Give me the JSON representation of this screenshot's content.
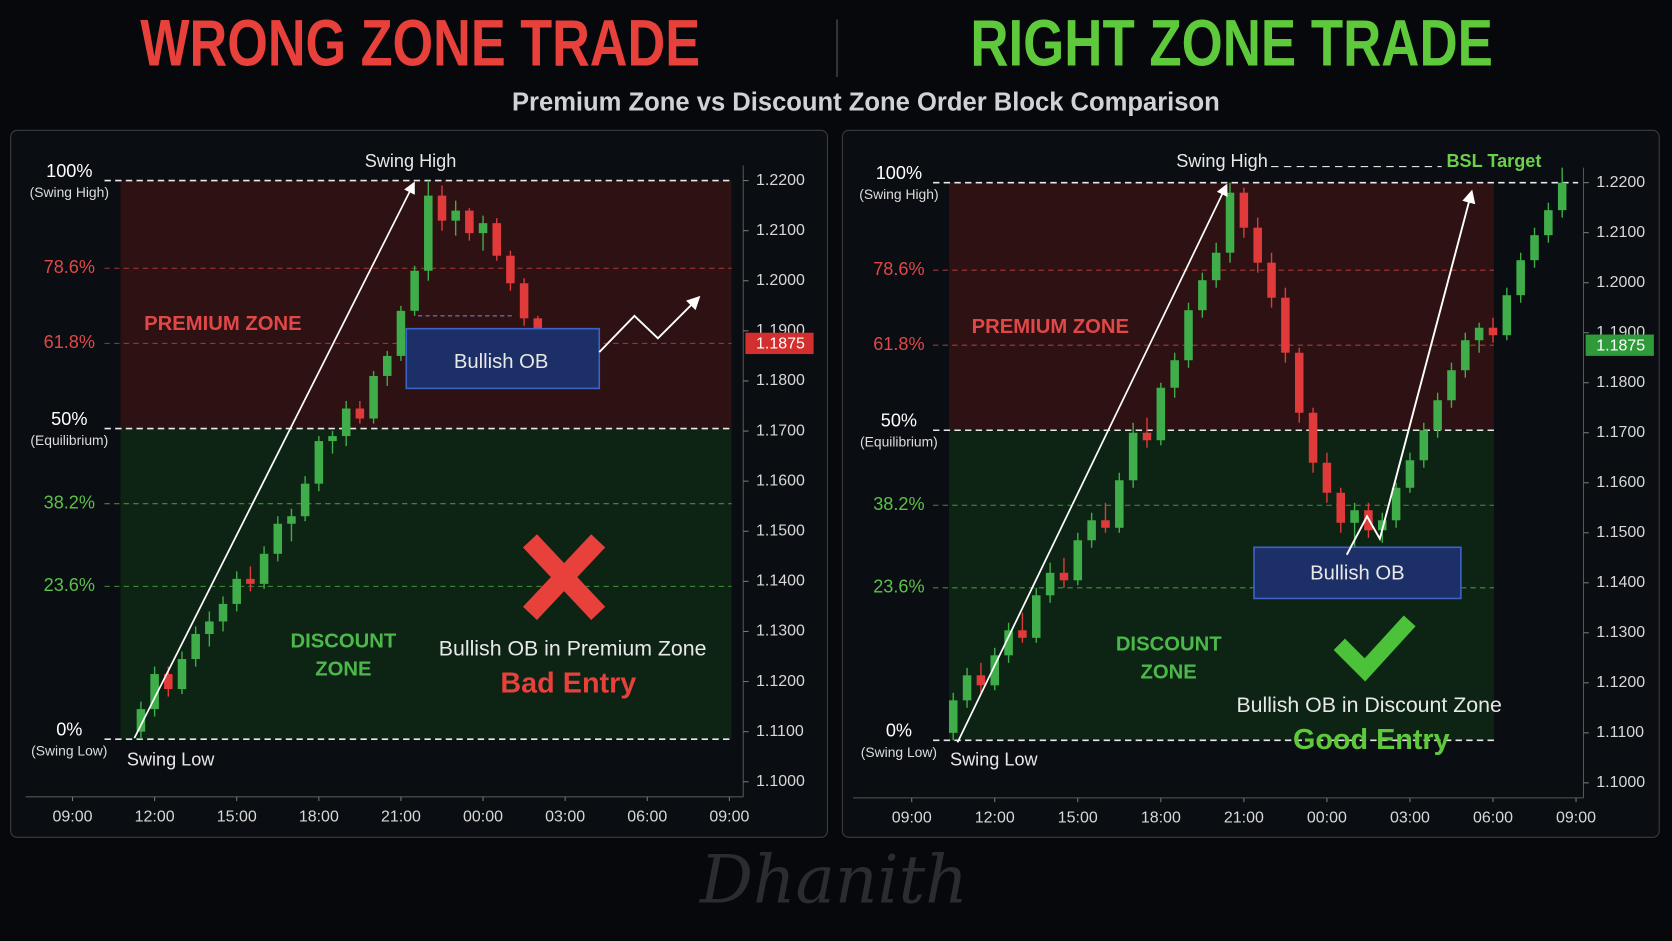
{
  "subtitle": "Premium Zone vs Discount Zone Order Block Comparison",
  "watermark": "Dhanith",
  "chart_data": [
    {
      "type": "candlestick",
      "title": "WRONG ZONE TRADE",
      "title_color": "#e8403a",
      "up_color": "#3fae4a",
      "down_color": "#e03a3a",
      "xticks": [
        "09:00",
        "12:00",
        "15:00",
        "18:00",
        "21:00",
        "00:00",
        "03:00",
        "06:00",
        "09:00"
      ],
      "ylim": [
        1.097,
        1.223
      ],
      "yticks": [
        {
          "value": 1.1,
          "label": "1.1000"
        },
        {
          "value": 1.11,
          "label": "1.1100"
        },
        {
          "value": 1.12,
          "label": "1.1200"
        },
        {
          "value": 1.13,
          "label": "1.1300"
        },
        {
          "value": 1.14,
          "label": "1.1400"
        },
        {
          "value": 1.15,
          "label": "1.1500"
        },
        {
          "value": 1.16,
          "label": "1.1600"
        },
        {
          "value": 1.17,
          "label": "1.1700"
        },
        {
          "value": 1.18,
          "label": "1.1800"
        },
        {
          "value": 1.19,
          "label": "1.1900"
        },
        {
          "value": 1.2,
          "label": "1.2000"
        },
        {
          "value": 1.21,
          "label": "1.2100"
        },
        {
          "value": 1.22,
          "label": "1.2200"
        }
      ],
      "levels": [
        {
          "label": "100%",
          "note": "(Swing High)",
          "value": 1.22,
          "color": "#ffffff"
        },
        {
          "label": "78.6%",
          "value": 1.2025,
          "color": "#e04848"
        },
        {
          "label": "61.8%",
          "value": 1.1875,
          "color": "#e04848",
          "tag": true
        },
        {
          "label": "50%",
          "note": "(Equilibrium)",
          "value": 1.1705,
          "color": "#ffffff"
        },
        {
          "label": "38.2%",
          "value": 1.1555,
          "color": "#5cc04a"
        },
        {
          "label": "23.6%",
          "value": 1.139,
          "color": "#5cc04a"
        },
        {
          "label": "0%",
          "note": "(Swing Low)",
          "value": 1.1085,
          "color": "#ffffff"
        }
      ],
      "tag_color": "#d42f2f",
      "zones": [
        {
          "label": [
            "PREMIUM ZONE"
          ],
          "color": "#2e1112"
        },
        {
          "label": [
            "DISCOUNT",
            "ZONE"
          ],
          "color": "#0d2414"
        }
      ],
      "annotations": {
        "swing_high": "Swing High",
        "swing_low": "Swing Low",
        "order_block": "Bullish OB",
        "verdict": "Bullish OB in Premium Zone",
        "entry": "Bad Entry"
      },
      "candles": {
        "x": [
          "11:30",
          "12:00",
          "12:30",
          "13:00",
          "13:30",
          "14:00",
          "14:30",
          "15:00",
          "15:30",
          "16:00",
          "16:30",
          "17:00",
          "17:30",
          "18:00",
          "18:30",
          "19:00",
          "19:30",
          "20:00",
          "20:30",
          "21:00",
          "21:30",
          "22:00",
          "22:30",
          "23:00",
          "23:30",
          "00:00",
          "00:30",
          "01:00",
          "01:30",
          "02:00"
        ],
        "open": [
          1.11,
          1.1145,
          1.1215,
          1.1185,
          1.1245,
          1.1295,
          1.132,
          1.1355,
          1.1405,
          1.1395,
          1.1455,
          1.1515,
          1.153,
          1.1595,
          1.168,
          1.169,
          1.1745,
          1.1725,
          1.181,
          1.185,
          1.194,
          1.202,
          1.217,
          1.212,
          1.214,
          1.2095,
          1.2115,
          1.205,
          1.1995,
          1.1925
        ],
        "high": [
          1.116,
          1.123,
          1.123,
          1.126,
          1.131,
          1.134,
          1.137,
          1.142,
          1.143,
          1.147,
          1.153,
          1.1545,
          1.161,
          1.169,
          1.17,
          1.176,
          1.176,
          1.182,
          1.186,
          1.195,
          1.203,
          1.22,
          1.219,
          1.216,
          1.2145,
          1.213,
          1.2125,
          1.206,
          1.2005,
          1.193
        ],
        "low": [
          1.1085,
          1.113,
          1.117,
          1.1175,
          1.123,
          1.127,
          1.13,
          1.134,
          1.138,
          1.1385,
          1.144,
          1.148,
          1.152,
          1.158,
          1.1655,
          1.167,
          1.1715,
          1.1715,
          1.179,
          1.184,
          1.193,
          1.2,
          1.21,
          1.209,
          1.208,
          1.206,
          1.204,
          1.198,
          1.191,
          1.188
        ],
        "close": [
          1.1145,
          1.1215,
          1.1185,
          1.1245,
          1.1295,
          1.132,
          1.1355,
          1.1405,
          1.1395,
          1.1455,
          1.1515,
          1.153,
          1.1595,
          1.168,
          1.169,
          1.1745,
          1.1725,
          1.181,
          1.185,
          1.194,
          1.202,
          1.217,
          1.212,
          1.214,
          1.2095,
          1.2115,
          1.205,
          1.1995,
          1.1925,
          1.189
        ]
      }
    },
    {
      "type": "candlestick",
      "title": "RIGHT ZONE TRADE",
      "title_color": "#5fc93c",
      "up_color": "#3fae4a",
      "down_color": "#e03a3a",
      "xticks": [
        "09:00",
        "12:00",
        "15:00",
        "18:00",
        "21:00",
        "00:00",
        "03:00",
        "06:00",
        "09:00"
      ],
      "ylim": [
        1.097,
        1.223
      ],
      "yticks": [
        {
          "value": 1.1,
          "label": "1.1000"
        },
        {
          "value": 1.11,
          "label": "1.1100"
        },
        {
          "value": 1.12,
          "label": "1.1200"
        },
        {
          "value": 1.13,
          "label": "1.1300"
        },
        {
          "value": 1.14,
          "label": "1.1400"
        },
        {
          "value": 1.15,
          "label": "1.1500"
        },
        {
          "value": 1.16,
          "label": "1.1600"
        },
        {
          "value": 1.17,
          "label": "1.1700"
        },
        {
          "value": 1.18,
          "label": "1.1800"
        },
        {
          "value": 1.19,
          "label": "1.1900"
        },
        {
          "value": 1.2,
          "label": "1.2000"
        },
        {
          "value": 1.21,
          "label": "1.2100"
        },
        {
          "value": 1.22,
          "label": "1.2200"
        }
      ],
      "levels": [
        {
          "label": "100%",
          "note": "(Swing High)",
          "value": 1.22,
          "color": "#ffffff"
        },
        {
          "label": "78.6%",
          "value": 1.2025,
          "color": "#e04848"
        },
        {
          "label": "61.8%",
          "value": 1.1875,
          "color": "#e04848",
          "tag": true
        },
        {
          "label": "50%",
          "note": "(Equilibrium)",
          "value": 1.1705,
          "color": "#ffffff"
        },
        {
          "label": "38.2%",
          "value": 1.1555,
          "color": "#5cc04a"
        },
        {
          "label": "23.6%",
          "value": 1.139,
          "color": "#5cc04a"
        },
        {
          "label": "0%",
          "note": "(Swing Low)",
          "value": 1.1085,
          "color": "#ffffff"
        }
      ],
      "tag_color": "#2f9a3a",
      "zones": [
        {
          "label": [
            "PREMIUM ZONE"
          ],
          "color": "#2e1112"
        },
        {
          "label": [
            "DISCOUNT",
            "ZONE"
          ],
          "color": "#0d2414"
        }
      ],
      "annotations": {
        "swing_high": "Swing High",
        "swing_low": "Swing Low",
        "target": "BSL Target",
        "order_block": "Bullish OB",
        "verdict": "Bullish OB in Discount Zone",
        "entry": "Good Entry"
      },
      "candles": {
        "x": [
          "10:30",
          "11:00",
          "11:30",
          "12:00",
          "12:30",
          "13:00",
          "13:30",
          "14:00",
          "14:30",
          "15:00",
          "15:30",
          "16:00",
          "16:30",
          "17:00",
          "17:30",
          "18:00",
          "18:30",
          "19:00",
          "19:30",
          "20:00",
          "20:30",
          "21:00",
          "21:30",
          "22:00",
          "22:30",
          "23:00",
          "23:30",
          "00:00",
          "00:30",
          "01:00",
          "01:30",
          "02:00",
          "02:30",
          "03:00",
          "03:30",
          "04:00",
          "04:30",
          "05:00",
          "05:30",
          "06:00",
          "06:30",
          "07:00",
          "07:30",
          "08:00",
          "08:30"
        ],
        "open": [
          1.11,
          1.1165,
          1.1215,
          1.1195,
          1.1255,
          1.1305,
          1.129,
          1.1375,
          1.142,
          1.1405,
          1.1485,
          1.1525,
          1.151,
          1.1605,
          1.17,
          1.1685,
          1.179,
          1.1845,
          1.1945,
          1.2005,
          1.206,
          1.218,
          1.211,
          1.204,
          1.197,
          1.186,
          1.174,
          1.164,
          1.158,
          1.152,
          1.1545,
          1.1505,
          1.1525,
          1.159,
          1.1645,
          1.1705,
          1.1765,
          1.1825,
          1.1885,
          1.191,
          1.1895,
          1.1975,
          1.2045,
          1.2095,
          1.2145
        ],
        "high": [
          1.118,
          1.123,
          1.124,
          1.127,
          1.132,
          1.134,
          1.139,
          1.144,
          1.145,
          1.15,
          1.154,
          1.156,
          1.162,
          1.172,
          1.173,
          1.18,
          1.186,
          1.196,
          1.202,
          1.208,
          1.22,
          1.219,
          1.213,
          1.206,
          1.199,
          1.187,
          1.175,
          1.166,
          1.159,
          1.156,
          1.156,
          1.154,
          1.16,
          1.166,
          1.172,
          1.178,
          1.184,
          1.19,
          1.192,
          1.193,
          1.199,
          1.206,
          1.211,
          1.216,
          1.223
        ],
        "low": [
          1.1085,
          1.115,
          1.118,
          1.1185,
          1.124,
          1.128,
          1.128,
          1.136,
          1.139,
          1.1395,
          1.147,
          1.15,
          1.15,
          1.159,
          1.167,
          1.1675,
          1.177,
          1.183,
          1.193,
          1.199,
          1.204,
          1.209,
          1.202,
          1.195,
          1.184,
          1.172,
          1.162,
          1.156,
          1.15,
          1.147,
          1.149,
          1.148,
          1.151,
          1.158,
          1.163,
          1.169,
          1.175,
          1.181,
          1.186,
          1.188,
          1.1885,
          1.196,
          1.203,
          1.208,
          1.213
        ],
        "close": [
          1.1165,
          1.1215,
          1.1195,
          1.1255,
          1.1305,
          1.129,
          1.1375,
          1.142,
          1.1405,
          1.1485,
          1.1525,
          1.151,
          1.1605,
          1.17,
          1.1685,
          1.179,
          1.1845,
          1.1945,
          1.2005,
          1.206,
          1.218,
          1.211,
          1.204,
          1.197,
          1.186,
          1.174,
          1.164,
          1.158,
          1.152,
          1.1545,
          1.1505,
          1.1525,
          1.159,
          1.1645,
          1.1705,
          1.1765,
          1.1825,
          1.1885,
          1.191,
          1.1895,
          1.1975,
          1.2045,
          1.2095,
          1.2145,
          1.22
        ]
      }
    }
  ]
}
